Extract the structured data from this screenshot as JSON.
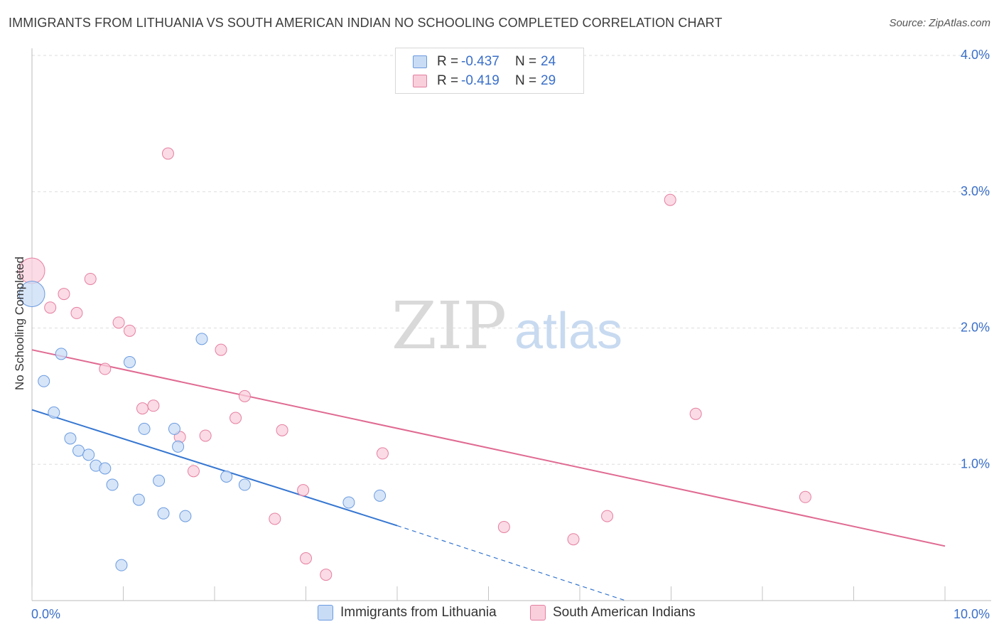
{
  "title": "IMMIGRANTS FROM LITHUANIA VS SOUTH AMERICAN INDIAN NO SCHOOLING COMPLETED CORRELATION CHART",
  "source": "Source: ZipAtlas.com",
  "watermark": {
    "zip": "ZIP",
    "atlas": "atlas"
  },
  "legend": {
    "rows": [
      {
        "r_label": "R =",
        "r_value": "-0.437",
        "n_label": "N =",
        "n_value": "24"
      },
      {
        "r_label": "R =",
        "r_value": "-0.419",
        "n_label": "N =",
        "n_value": "29"
      }
    ]
  },
  "chart_data": {
    "type": "scatter",
    "title": "IMMIGRANTS FROM LITHUANIA VS SOUTH AMERICAN INDIAN NO SCHOOLING COMPLETED CORRELATION CHART",
    "xlabel": "",
    "ylabel": "No Schooling Completed",
    "xlim": [
      0,
      10
    ],
    "ylim": [
      0,
      4.0
    ],
    "x_tick_labels": [
      "0.0%",
      "10.0%"
    ],
    "y_ticks": [
      1.0,
      2.0,
      3.0,
      4.0
    ],
    "y_tick_labels": [
      "1.0%",
      "2.0%",
      "3.0%",
      "4.0%"
    ],
    "grid": true,
    "series": [
      {
        "name": "Immigrants from Lithuania",
        "color": "#6a9be0",
        "fill": "#c9dcf5",
        "r": -0.437,
        "n": 24,
        "points": [
          {
            "x": 0.0,
            "y": 2.25,
            "big": true
          },
          {
            "x": 0.13,
            "y": 1.61
          },
          {
            "x": 0.24,
            "y": 1.38
          },
          {
            "x": 0.32,
            "y": 1.81
          },
          {
            "x": 0.42,
            "y": 1.19
          },
          {
            "x": 0.51,
            "y": 1.1
          },
          {
            "x": 0.62,
            "y": 1.07
          },
          {
            "x": 0.7,
            "y": 0.99
          },
          {
            "x": 0.8,
            "y": 0.97
          },
          {
            "x": 0.88,
            "y": 0.85
          },
          {
            "x": 0.98,
            "y": 0.26
          },
          {
            "x": 1.07,
            "y": 1.75
          },
          {
            "x": 1.17,
            "y": 0.74
          },
          {
            "x": 1.23,
            "y": 1.26
          },
          {
            "x": 1.39,
            "y": 0.88
          },
          {
            "x": 1.44,
            "y": 0.64
          },
          {
            "x": 1.56,
            "y": 1.26
          },
          {
            "x": 1.6,
            "y": 1.13
          },
          {
            "x": 1.68,
            "y": 0.62
          },
          {
            "x": 1.86,
            "y": 1.92
          },
          {
            "x": 2.13,
            "y": 0.91
          },
          {
            "x": 2.33,
            "y": 0.85
          },
          {
            "x": 3.47,
            "y": 0.72
          },
          {
            "x": 3.81,
            "y": 0.77
          }
        ],
        "trend": {
          "x0": 0.0,
          "y0": 1.4,
          "x1": 4.0,
          "y1": 0.55,
          "dash_to_x": 6.5,
          "dash_to_y": 0.0
        }
      },
      {
        "name": "South American Indians",
        "color": "#e57fa0",
        "fill": "#f9cfdc",
        "r": -0.419,
        "n": 29,
        "points": [
          {
            "x": 0.0,
            "y": 2.42,
            "big": true
          },
          {
            "x": 0.2,
            "y": 2.15
          },
          {
            "x": 0.35,
            "y": 2.25
          },
          {
            "x": 0.49,
            "y": 2.11
          },
          {
            "x": 0.64,
            "y": 2.36
          },
          {
            "x": 0.8,
            "y": 1.7
          },
          {
            "x": 0.95,
            "y": 2.04
          },
          {
            "x": 1.07,
            "y": 1.98
          },
          {
            "x": 1.21,
            "y": 1.41
          },
          {
            "x": 1.33,
            "y": 1.43
          },
          {
            "x": 1.49,
            "y": 3.28
          },
          {
            "x": 1.62,
            "y": 1.2
          },
          {
            "x": 1.77,
            "y": 0.95
          },
          {
            "x": 1.9,
            "y": 1.21
          },
          {
            "x": 2.07,
            "y": 1.84
          },
          {
            "x": 2.23,
            "y": 1.34
          },
          {
            "x": 2.33,
            "y": 1.5
          },
          {
            "x": 2.66,
            "y": 0.6
          },
          {
            "x": 2.74,
            "y": 1.25
          },
          {
            "x": 2.97,
            "y": 0.81
          },
          {
            "x": 3.0,
            "y": 0.31
          },
          {
            "x": 3.22,
            "y": 0.19
          },
          {
            "x": 3.84,
            "y": 1.08
          },
          {
            "x": 5.17,
            "y": 0.54
          },
          {
            "x": 5.93,
            "y": 0.45
          },
          {
            "x": 6.3,
            "y": 0.62
          },
          {
            "x": 6.99,
            "y": 2.94
          },
          {
            "x": 7.27,
            "y": 1.37
          },
          {
            "x": 8.47,
            "y": 0.76
          }
        ],
        "trend": {
          "x0": 0.0,
          "y0": 1.84,
          "x1": 10.0,
          "y1": 0.4
        }
      }
    ]
  },
  "colors": {
    "blue": "#6a9be0",
    "blue_fill": "#c9dcf5",
    "blue_line": "#3576d1",
    "pink": "#e57fa0",
    "pink_fill": "#f9cfdc",
    "pink_line": "#e06a92",
    "tick_text": "#3a6fc9",
    "grid": "#dddddd"
  }
}
